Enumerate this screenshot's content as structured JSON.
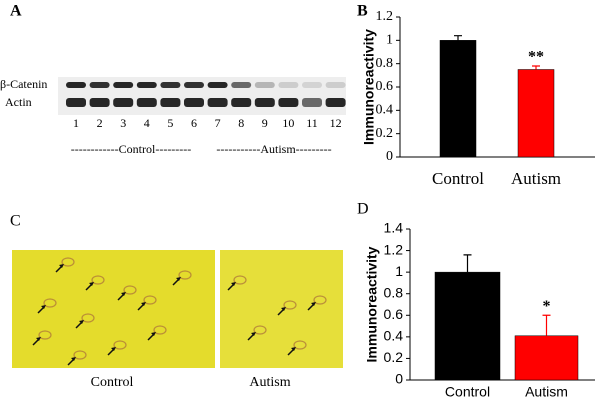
{
  "chart_data": [
    {
      "type": "bar",
      "panel_label": "B",
      "y_label": "Immunoreactivity",
      "categories": [
        "Control",
        "Autism"
      ],
      "values": [
        1.0,
        0.75
      ],
      "errors": [
        0.04,
        0.03
      ],
      "colors": [
        "#000000",
        "#ff0000"
      ],
      "annotations": [
        "**"
      ],
      "ylim": [
        0,
        1.2
      ],
      "yticks": [
        0,
        0.2,
        0.4,
        0.6,
        0.8,
        1,
        1.2
      ]
    },
    {
      "type": "bar",
      "panel_label": "D",
      "y_label": "Immunoreactivity",
      "categories": [
        "Control",
        "Autism"
      ],
      "values": [
        1.0,
        0.41
      ],
      "errors": [
        0.16,
        0.19
      ],
      "colors": [
        "#000000",
        "#ff0000"
      ],
      "annotations": [
        "*"
      ],
      "ylim": [
        0,
        1.4
      ],
      "yticks": [
        0,
        0.2,
        0.4,
        0.6,
        0.8,
        1,
        1.2,
        1.4
      ]
    }
  ],
  "blot": {
    "panel_label": "A",
    "bands": [
      "β-Catenin",
      "Actin"
    ],
    "lanes": [
      "1",
      "2",
      "3",
      "4",
      "5",
      "6",
      "7",
      "8",
      "9",
      "10",
      "11",
      "12"
    ],
    "groups": [
      "------------Control---------",
      "-----------Autism---------"
    ]
  },
  "micrographs": {
    "panel_label": "C",
    "labels": [
      "Control",
      "Autism"
    ]
  }
}
